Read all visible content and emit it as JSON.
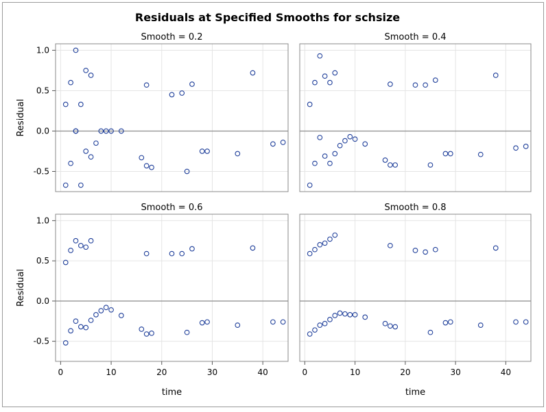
{
  "title": "Residuals at Specified Smooths for schsize",
  "colors": {
    "marker": "#1f3f9a",
    "grid": "#e4e4e4",
    "frame": "#8a8a8a",
    "reference_line": "#8a8a8a"
  },
  "chart_data": [
    {
      "type": "scatter",
      "panel_title": "Smooth = 0.2",
      "xlabel": "time",
      "ylabel": "Residual",
      "xlim": [
        -1,
        45
      ],
      "ylim": [
        -0.75,
        1.08
      ],
      "x_ticks": [
        0,
        10,
        20,
        30,
        40
      ],
      "y_ticks": [
        -0.5,
        0.0,
        0.5,
        1.0
      ],
      "reference_line_y": 0,
      "points": [
        [
          1,
          0.33
        ],
        [
          1,
          -0.67
        ],
        [
          2,
          0.6
        ],
        [
          2,
          -0.4
        ],
        [
          3,
          1.0
        ],
        [
          3,
          0.0
        ],
        [
          3,
          0.0
        ],
        [
          4,
          0.33
        ],
        [
          4,
          -0.67
        ],
        [
          5,
          0.75
        ],
        [
          5,
          -0.25
        ],
        [
          6,
          0.69
        ],
        [
          6,
          -0.32
        ],
        [
          7,
          -0.15
        ],
        [
          8,
          0.0
        ],
        [
          9,
          0.0
        ],
        [
          10,
          0.0
        ],
        [
          12,
          0.0
        ],
        [
          16,
          -0.33
        ],
        [
          17,
          0.57
        ],
        [
          17,
          -0.43
        ],
        [
          18,
          -0.45
        ],
        [
          22,
          0.45
        ],
        [
          24,
          0.47
        ],
        [
          25,
          -0.5
        ],
        [
          26,
          0.58
        ],
        [
          28,
          -0.25
        ],
        [
          29,
          -0.25
        ],
        [
          35,
          -0.28
        ],
        [
          38,
          0.72
        ],
        [
          42,
          -0.16
        ],
        [
          44,
          -0.14
        ]
      ]
    },
    {
      "type": "scatter",
      "panel_title": "Smooth = 0.4",
      "xlabel": "time",
      "ylabel": "",
      "xlim": [
        -1,
        45
      ],
      "ylim": [
        -0.75,
        1.08
      ],
      "x_ticks": [
        0,
        10,
        20,
        30,
        40
      ],
      "y_ticks": [
        -0.5,
        0.0,
        0.5,
        1.0
      ],
      "reference_line_y": 0,
      "points": [
        [
          1,
          0.33
        ],
        [
          1,
          -0.67
        ],
        [
          2,
          0.6
        ],
        [
          2,
          -0.4
        ],
        [
          3,
          0.93
        ],
        [
          3,
          -0.08
        ],
        [
          4,
          0.68
        ],
        [
          4,
          -0.31
        ],
        [
          5,
          0.6
        ],
        [
          5,
          -0.4
        ],
        [
          6,
          0.72
        ],
        [
          6,
          -0.28
        ],
        [
          7,
          -0.18
        ],
        [
          8,
          -0.12
        ],
        [
          9,
          -0.07
        ],
        [
          10,
          -0.1
        ],
        [
          12,
          -0.16
        ],
        [
          16,
          -0.36
        ],
        [
          17,
          0.58
        ],
        [
          17,
          -0.42
        ],
        [
          18,
          -0.42
        ],
        [
          22,
          0.57
        ],
        [
          24,
          0.57
        ],
        [
          25,
          -0.42
        ],
        [
          26,
          0.63
        ],
        [
          28,
          -0.28
        ],
        [
          29,
          -0.28
        ],
        [
          35,
          -0.29
        ],
        [
          38,
          0.69
        ],
        [
          42,
          -0.21
        ],
        [
          44,
          -0.19
        ]
      ]
    },
    {
      "type": "scatter",
      "panel_title": "Smooth = 0.6",
      "xlabel": "time",
      "ylabel": "Residual",
      "xlim": [
        -1,
        45
      ],
      "ylim": [
        -0.75,
        1.08
      ],
      "x_ticks": [
        0,
        10,
        20,
        30,
        40
      ],
      "y_ticks": [
        -0.5,
        0.0,
        0.5,
        1.0
      ],
      "reference_line_y": 0,
      "points": [
        [
          1,
          0.48
        ],
        [
          1,
          -0.52
        ],
        [
          2,
          0.63
        ],
        [
          2,
          -0.37
        ],
        [
          3,
          0.75
        ],
        [
          3,
          -0.25
        ],
        [
          4,
          0.69
        ],
        [
          4,
          -0.32
        ],
        [
          5,
          0.67
        ],
        [
          5,
          -0.33
        ],
        [
          6,
          0.75
        ],
        [
          6,
          -0.24
        ],
        [
          7,
          -0.17
        ],
        [
          8,
          -0.12
        ],
        [
          9,
          -0.08
        ],
        [
          10,
          -0.11
        ],
        [
          12,
          -0.18
        ],
        [
          16,
          -0.35
        ],
        [
          17,
          0.59
        ],
        [
          17,
          -0.41
        ],
        [
          18,
          -0.4
        ],
        [
          22,
          0.59
        ],
        [
          24,
          0.59
        ],
        [
          25,
          -0.39
        ],
        [
          26,
          0.65
        ],
        [
          28,
          -0.27
        ],
        [
          29,
          -0.26
        ],
        [
          35,
          -0.3
        ],
        [
          38,
          0.66
        ],
        [
          42,
          -0.26
        ],
        [
          44,
          -0.26
        ]
      ]
    },
    {
      "type": "scatter",
      "panel_title": "Smooth = 0.8",
      "xlabel": "time",
      "ylabel": "",
      "xlim": [
        -1,
        45
      ],
      "ylim": [
        -0.75,
        1.08
      ],
      "x_ticks": [
        0,
        10,
        20,
        30,
        40
      ],
      "y_ticks": [
        -0.5,
        0.0,
        0.5,
        1.0
      ],
      "reference_line_y": 0,
      "points": [
        [
          1,
          0.59
        ],
        [
          1,
          -0.41
        ],
        [
          2,
          0.64
        ],
        [
          2,
          -0.36
        ],
        [
          3,
          0.7
        ],
        [
          3,
          -0.3
        ],
        [
          4,
          0.72
        ],
        [
          4,
          -0.28
        ],
        [
          5,
          0.77
        ],
        [
          5,
          -0.23
        ],
        [
          6,
          0.82
        ],
        [
          6,
          -0.18
        ],
        [
          7,
          -0.15
        ],
        [
          8,
          -0.16
        ],
        [
          9,
          -0.17
        ],
        [
          10,
          -0.17
        ],
        [
          12,
          -0.2
        ],
        [
          16,
          -0.28
        ],
        [
          17,
          0.69
        ],
        [
          17,
          -0.31
        ],
        [
          18,
          -0.32
        ],
        [
          22,
          0.63
        ],
        [
          24,
          0.61
        ],
        [
          25,
          -0.39
        ],
        [
          26,
          0.64
        ],
        [
          28,
          -0.27
        ],
        [
          29,
          -0.26
        ],
        [
          35,
          -0.3
        ],
        [
          38,
          0.66
        ],
        [
          42,
          -0.26
        ],
        [
          44,
          -0.26
        ]
      ]
    }
  ]
}
